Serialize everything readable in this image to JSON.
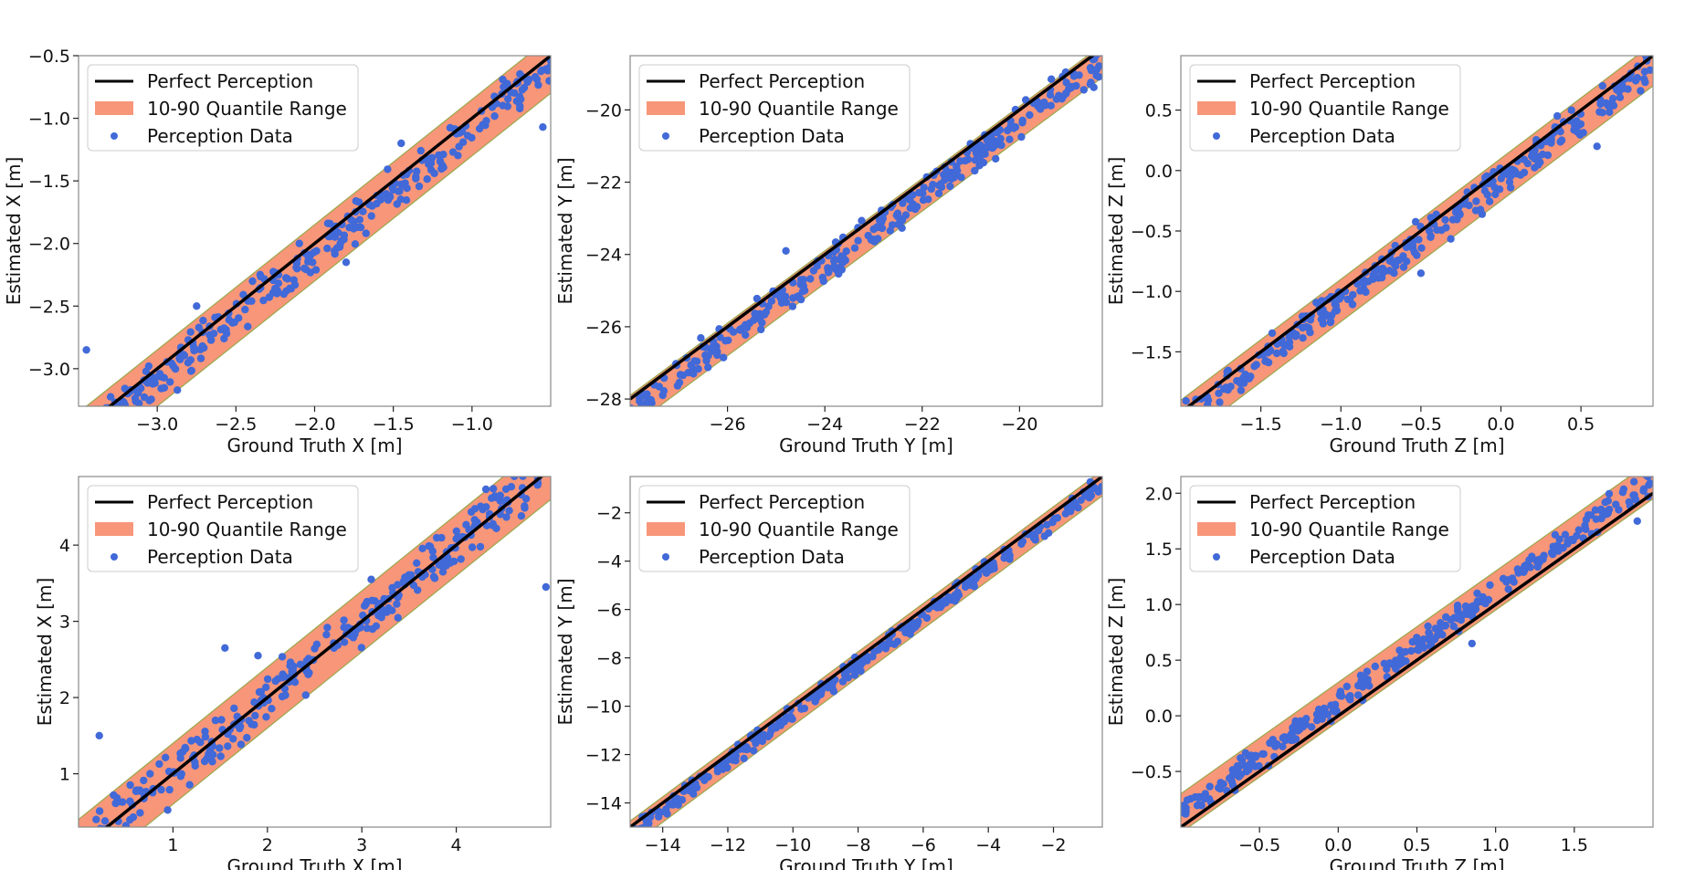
{
  "legend": {
    "perfect": "Perfect Perception",
    "band": "10-90 Quantile Range",
    "data": "Perception Data"
  },
  "colors": {
    "perfect": "#000000",
    "band": "#f8967a",
    "band_edge": "#9aa84a",
    "points": "#4169d8",
    "frame": "#888888"
  },
  "chart_data": [
    {
      "type": "scatter",
      "xlabel": "Ground Truth X [m]",
      "ylabel": "Estimated X [m]",
      "xlim": [
        -3.5,
        -0.5
      ],
      "ylim": [
        -3.3,
        -0.5
      ],
      "xticks": [
        -3.0,
        -2.5,
        -2.0,
        -1.5,
        -1.0
      ],
      "xtick_labels": [
        "−3.0",
        "−2.5",
        "−2.0",
        "−1.5",
        "−1.0"
      ],
      "yticks": [
        -3.0,
        -2.5,
        -2.0,
        -1.5,
        -1.0,
        -0.5
      ],
      "ytick_labels": [
        "−3.0",
        "−2.5",
        "−2.0",
        "−1.5",
        "−1.0",
        "−0.5"
      ],
      "band_offset": [
        -0.3,
        0.15
      ],
      "noise": 0.12,
      "legend_position": "top-left",
      "outliers": [
        [
          -3.45,
          -2.85
        ],
        [
          -2.75,
          -2.5
        ],
        [
          -1.8,
          -2.15
        ],
        [
          -1.45,
          -1.2
        ],
        [
          -0.55,
          -1.07
        ],
        [
          -0.8,
          -0.75
        ]
      ]
    },
    {
      "type": "scatter",
      "xlabel": "Ground Truth Y [m]",
      "ylabel": "Estimated Y [m]",
      "xlim": [
        -28.0,
        -18.3
      ],
      "ylim": [
        -28.2,
        -18.5
      ],
      "xticks": [
        -26,
        -24,
        -22,
        -20
      ],
      "xtick_labels": [
        "−26",
        "−24",
        "−22",
        "−20"
      ],
      "yticks": [
        -28,
        -26,
        -24,
        -22,
        -20
      ],
      "ytick_labels": [
        "−28",
        "−26",
        "−24",
        "−22",
        "−20"
      ],
      "band_offset": [
        -0.8,
        0.1
      ],
      "noise": 0.3,
      "legend_position": "top-left",
      "outliers": [
        [
          -24.8,
          -23.9
        ],
        [
          -26.7,
          -27.3
        ]
      ]
    },
    {
      "type": "scatter",
      "xlabel": "Ground Truth Z [m]",
      "ylabel": "Estimated Z [m]",
      "xlim": [
        -2.0,
        0.95
      ],
      "ylim": [
        -1.95,
        0.95
      ],
      "xticks": [
        -1.5,
        -1.0,
        -0.5,
        0.0,
        0.5
      ],
      "xtick_labels": [
        "−1.5",
        "−1.0",
        "−0.5",
        "0.0",
        "0.5"
      ],
      "yticks": [
        -1.5,
        -1.0,
        -0.5,
        0.0,
        0.5
      ],
      "ytick_labels": [
        "−1.5",
        "−1.0",
        "−0.5",
        "0.0",
        "0.5"
      ],
      "band_offset": [
        -0.25,
        0.1
      ],
      "noise": 0.1,
      "legend_position": "top-left",
      "outliers": [
        [
          -0.5,
          -0.85
        ],
        [
          0.6,
          0.2
        ]
      ]
    },
    {
      "type": "scatter",
      "xlabel": "Ground Truth X [m]",
      "ylabel": "Estimated X [m]",
      "xlim": [
        0.0,
        5.0
      ],
      "ylim": [
        0.3,
        4.9
      ],
      "xticks": [
        1,
        2,
        3,
        4
      ],
      "xtick_labels": [
        "1",
        "2",
        "3",
        "4"
      ],
      "yticks": [
        1,
        2,
        3,
        4
      ],
      "ytick_labels": [
        "1",
        "2",
        "3",
        "4"
      ],
      "band_offset": [
        -0.4,
        0.4
      ],
      "noise": 0.22,
      "legend_position": "top-left",
      "outliers": [
        [
          0.22,
          1.5
        ],
        [
          1.55,
          2.65
        ],
        [
          4.95,
          3.45
        ],
        [
          1.9,
          2.55
        ],
        [
          3.1,
          3.55
        ]
      ]
    },
    {
      "type": "scatter",
      "xlabel": "Ground Truth Y [m]",
      "ylabel": "Estimated Y [m]",
      "xlim": [
        -15.0,
        -0.5
      ],
      "ylim": [
        -15.0,
        -0.5
      ],
      "xticks": [
        -14,
        -12,
        -10,
        -8,
        -6,
        -4,
        -2
      ],
      "xtick_labels": [
        "−14",
        "−12",
        "−10",
        "−8",
        "−6",
        "−4",
        "−2"
      ],
      "yticks": [
        -14,
        -12,
        -10,
        -8,
        -6,
        -4,
        -2
      ],
      "ytick_labels": [
        "−14",
        "−12",
        "−10",
        "−8",
        "−6",
        "−4",
        "−2"
      ],
      "band_offset": [
        -0.8,
        0.25
      ],
      "noise": 0.25,
      "legend_position": "top-left",
      "outliers": []
    },
    {
      "type": "scatter",
      "xlabel": "Ground Truth Z [m]",
      "ylabel": "Estimated Z [m]",
      "xlim": [
        -1.0,
        2.0
      ],
      "ylim": [
        -1.0,
        2.15
      ],
      "xticks": [
        -0.5,
        0.0,
        0.5,
        1.0,
        1.5
      ],
      "xtick_labels": [
        "−0.5",
        "0.0",
        "0.5",
        "1.0",
        "1.5"
      ],
      "yticks": [
        -0.5,
        0.0,
        0.5,
        1.0,
        1.5,
        2.0
      ],
      "ytick_labels": [
        "−0.5",
        "0.0",
        "0.5",
        "1.0",
        "1.5",
        "2.0"
      ],
      "band_offset": [
        -0.05,
        0.3
      ],
      "noise": 0.08,
      "legend_position": "top-left",
      "outliers": [
        [
          0.85,
          0.65
        ],
        [
          1.9,
          1.75
        ]
      ]
    }
  ]
}
